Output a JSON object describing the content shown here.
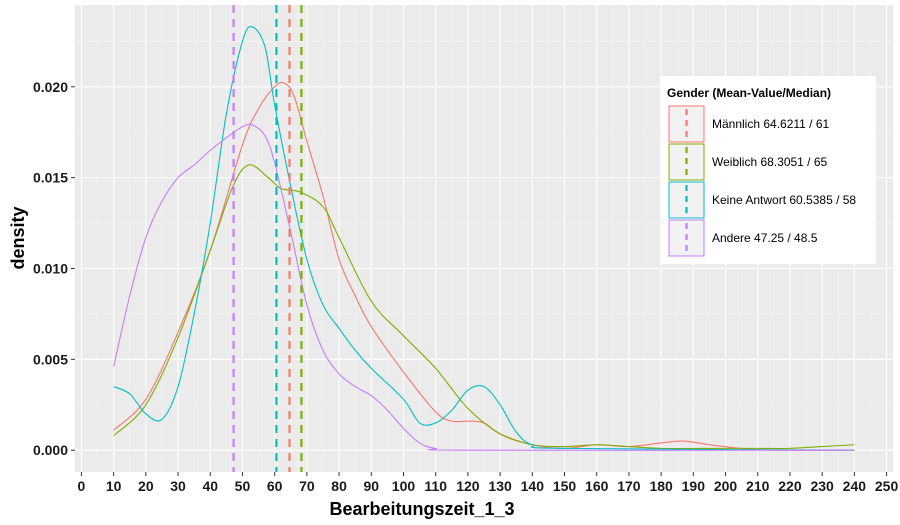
{
  "chart_data": {
    "type": "line",
    "xlabel": "Bearbeitungszeit_1_3",
    "ylabel": "density",
    "xlim": [
      -2,
      252
    ],
    "ylim": [
      -0.0012,
      0.0245
    ],
    "x_ticks": [
      0,
      10,
      20,
      30,
      40,
      50,
      60,
      70,
      80,
      90,
      100,
      110,
      120,
      130,
      140,
      150,
      160,
      170,
      180,
      190,
      200,
      210,
      220,
      230,
      240,
      250
    ],
    "x_tick_labels": [
      "0",
      "10",
      "20",
      "30",
      "40",
      "50",
      "60",
      "70",
      "80",
      "90",
      "100",
      "110",
      "120",
      "130",
      "140",
      "150",
      "160",
      "170",
      "180",
      "190",
      "200",
      "210",
      "220",
      "230",
      "240",
      "250"
    ],
    "y_ticks": [
      0,
      0.005,
      0.01,
      0.015,
      0.02
    ],
    "y_tick_labels": [
      "0.000",
      "0.005",
      "0.010",
      "0.015",
      "0.020"
    ],
    "grid": true,
    "legend": {
      "title": "Gender (Mean-Value/Median)",
      "position": "right"
    },
    "series": [
      {
        "name": "Männlich 64.6211 / 61",
        "color": "#F8766D",
        "vline": 64.6211,
        "points": [
          [
            10,
            0.0011
          ],
          [
            20,
            0.0028
          ],
          [
            30,
            0.0065
          ],
          [
            40,
            0.011
          ],
          [
            50,
            0.0168
          ],
          [
            55,
            0.0188
          ],
          [
            60,
            0.02
          ],
          [
            63,
            0.0202
          ],
          [
            66,
            0.0195
          ],
          [
            70,
            0.017
          ],
          [
            75,
            0.014
          ],
          [
            80,
            0.0105
          ],
          [
            85,
            0.0085
          ],
          [
            90,
            0.0068
          ],
          [
            100,
            0.0043
          ],
          [
            110,
            0.0021
          ],
          [
            115,
            0.0016
          ],
          [
            120,
            0.0016
          ],
          [
            125,
            0.0015
          ],
          [
            130,
            0.0009
          ],
          [
            140,
            0.0003
          ],
          [
            150,
            0.0001
          ],
          [
            160,
            0.0003
          ],
          [
            170,
            0.0002
          ],
          [
            180,
            0.0004
          ],
          [
            187,
            0.0005
          ],
          [
            195,
            0.0003
          ],
          [
            205,
            0.0001
          ],
          [
            215,
            0.0
          ],
          [
            240,
            0.0
          ]
        ]
      },
      {
        "name": "Weiblich 68.3051 / 65",
        "color": "#7CAE00",
        "vline": 68.3051,
        "points": [
          [
            10,
            0.0008
          ],
          [
            20,
            0.0025
          ],
          [
            30,
            0.0062
          ],
          [
            40,
            0.011
          ],
          [
            47,
            0.0145
          ],
          [
            52,
            0.0157
          ],
          [
            58,
            0.015
          ],
          [
            62,
            0.0144
          ],
          [
            68,
            0.0142
          ],
          [
            75,
            0.0134
          ],
          [
            80,
            0.0117
          ],
          [
            90,
            0.0082
          ],
          [
            100,
            0.0063
          ],
          [
            110,
            0.0045
          ],
          [
            120,
            0.0023
          ],
          [
            130,
            0.0009
          ],
          [
            140,
            0.0003
          ],
          [
            150,
            0.0002
          ],
          [
            160,
            0.0003
          ],
          [
            170,
            0.0002
          ],
          [
            180,
            0.0001
          ],
          [
            200,
            0.0001
          ],
          [
            210,
            0.0001
          ],
          [
            220,
            0.0001
          ],
          [
            230,
            0.0002
          ],
          [
            240,
            0.0003
          ]
        ]
      },
      {
        "name": "Keine Antwort 60.5385 / 58",
        "color": "#00BFC4",
        "vline": 60.5385,
        "points": [
          [
            10,
            0.0035
          ],
          [
            15,
            0.0031
          ],
          [
            20,
            0.002
          ],
          [
            25,
            0.0017
          ],
          [
            30,
            0.0035
          ],
          [
            35,
            0.0075
          ],
          [
            40,
            0.0125
          ],
          [
            45,
            0.0185
          ],
          [
            50,
            0.0225
          ],
          [
            53,
            0.0233
          ],
          [
            57,
            0.0222
          ],
          [
            60,
            0.019
          ],
          [
            65,
            0.0145
          ],
          [
            70,
            0.0105
          ],
          [
            75,
            0.008
          ],
          [
            80,
            0.0067
          ],
          [
            85,
            0.0055
          ],
          [
            90,
            0.0045
          ],
          [
            100,
            0.0028
          ],
          [
            105,
            0.0015
          ],
          [
            110,
            0.0015
          ],
          [
            115,
            0.0022
          ],
          [
            120,
            0.0033
          ],
          [
            125,
            0.0035
          ],
          [
            130,
            0.0025
          ],
          [
            135,
            0.001
          ],
          [
            140,
            0.0003
          ],
          [
            150,
            0.0001
          ],
          [
            240,
            0.0
          ]
        ]
      },
      {
        "name": "Andere 47.25 / 48.5",
        "color": "#C77CFF",
        "vline": 47.25,
        "points": [
          [
            10,
            0.0046
          ],
          [
            15,
            0.0085
          ],
          [
            20,
            0.0117
          ],
          [
            25,
            0.0137
          ],
          [
            30,
            0.015
          ],
          [
            35,
            0.0157
          ],
          [
            40,
            0.0165
          ],
          [
            45,
            0.0172
          ],
          [
            50,
            0.0178
          ],
          [
            53,
            0.0179
          ],
          [
            57,
            0.0173
          ],
          [
            60,
            0.0158
          ],
          [
            65,
            0.012
          ],
          [
            70,
            0.008
          ],
          [
            75,
            0.0055
          ],
          [
            80,
            0.0042
          ],
          [
            85,
            0.0035
          ],
          [
            90,
            0.003
          ],
          [
            95,
            0.0022
          ],
          [
            100,
            0.0012
          ],
          [
            105,
            0.0004
          ],
          [
            110,
            0.0001
          ],
          [
            120,
            0.0
          ],
          [
            240,
            0.0
          ]
        ]
      }
    ]
  }
}
